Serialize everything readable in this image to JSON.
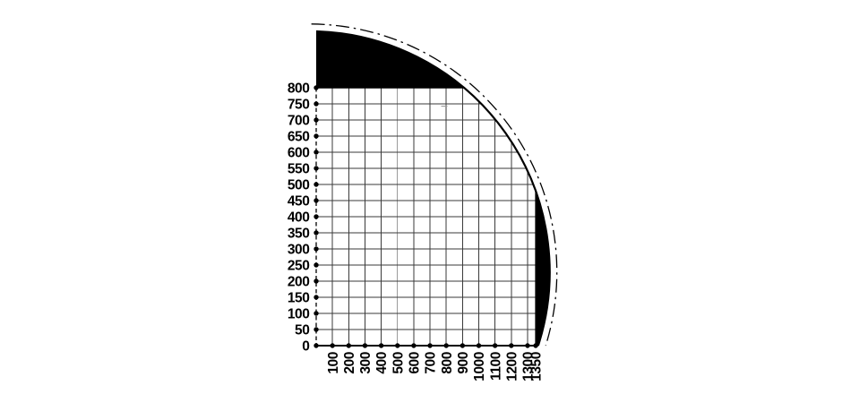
{
  "figure": {
    "background_color": "#ffffff",
    "ink_color": "#000000",
    "gridline_color": "#3a3a3a",
    "stray_mark_color": "#9a9a9a"
  },
  "chart_data": {
    "type": "area",
    "title": "",
    "xlabel": "",
    "ylabel": "",
    "x_axis": {
      "ticks": [
        100,
        200,
        300,
        400,
        500,
        600,
        700,
        800,
        900,
        1000,
        1100,
        1200,
        1300,
        1350
      ],
      "range": [
        0,
        1350
      ],
      "grid_step": 100,
      "label_rotation_deg": -90
    },
    "y_axis": {
      "ticks": [
        0,
        50,
        100,
        150,
        200,
        250,
        300,
        350,
        400,
        450,
        500,
        550,
        600,
        650,
        700,
        750,
        800
      ],
      "range": [
        0,
        800
      ],
      "grid_step": 50
    },
    "grid": "on",
    "legend": "none",
    "envelope": {
      "description": "Quarter-circle working-range envelope arc clipping the grid; solid black filled regions lie between the gridded area (bounded by y=800 line and x=1350 line) and the envelope arc; a dash-dot phantom arc runs just outside the solid envelope.",
      "boundary_points_data_units": [
        [
          0,
          975
        ],
        [
          913,
          800
        ],
        [
          1350,
          479
        ],
        [
          1365,
          0
        ]
      ],
      "filled_regions": [
        "segment above y=800 between x=0 line and arc",
        "lens right of x=1350 between gridline and arc, down to y=0"
      ]
    }
  }
}
